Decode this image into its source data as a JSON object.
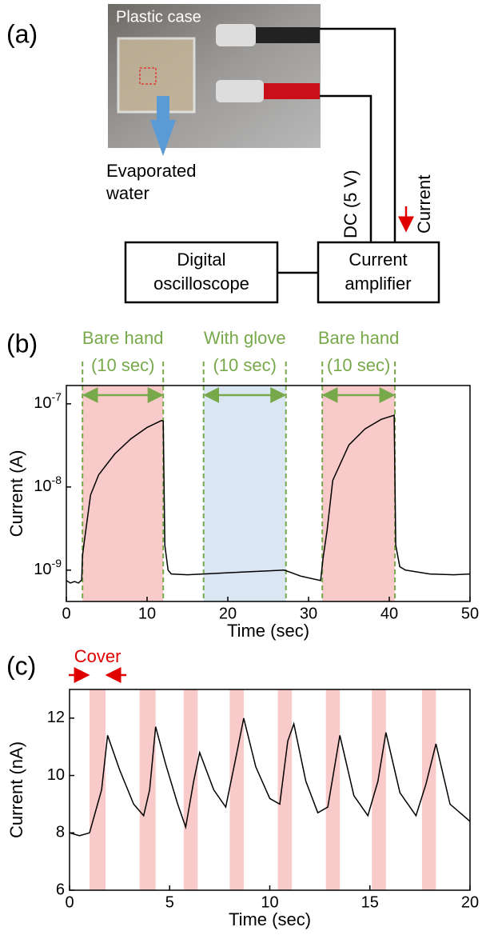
{
  "panel_a": {
    "panel": "(a)",
    "photo_label": "Plastic case",
    "water_label_1": "Evaporated",
    "water_label_2": "water",
    "dc_label": "DC (5 V)",
    "current_label": "Current",
    "osc_1": "Digital",
    "osc_2": "oscilloscope",
    "amp_1": "Current",
    "amp_2": "amplifier"
  },
  "chart_data": [
    {
      "type": "line",
      "panel": "(b)",
      "y_label": "Current (A)",
      "x_label": "Time (sec)",
      "log_y": true,
      "color": "#000000",
      "xlim": [
        0,
        50
      ],
      "xticks": [
        0,
        10,
        20,
        30,
        40,
        50
      ],
      "ylim": [
        4.2e-10,
        1.66e-07
      ],
      "yticks": [
        {
          "value": 1e-09,
          "label": "10-9"
        },
        {
          "value": 1e-08,
          "label": "10-8"
        },
        {
          "value": 1e-07,
          "label": "10-7"
        }
      ],
      "region_edges": true,
      "edge_color": "#77a94b",
      "regions": [
        {
          "label": "Bare hand",
          "sublabel": "(10 sec)",
          "start": 2,
          "end": 12,
          "color": "#f8caca"
        },
        {
          "label": "With glove",
          "sublabel": "(10 sec)",
          "start": 17,
          "end": 27.2,
          "color": "#dbe6f3"
        },
        {
          "label": "Bare hand",
          "sublabel": "(10 sec)",
          "start": 31.7,
          "end": 40.7,
          "color": "#f8caca"
        }
      ],
      "x": [
        0,
        0.5,
        1,
        1.5,
        1.9,
        2.0,
        2.3,
        3,
        4,
        6,
        8,
        10,
        11.8,
        12,
        12.2,
        12.6,
        13,
        15,
        17,
        20,
        22,
        25,
        27,
        29,
        31.5,
        31.8,
        32.3,
        33,
        35,
        37,
        39,
        40.6,
        40.8,
        41.3,
        42,
        45,
        48,
        50
      ],
      "y": [
        7.5e-10,
        7e-10,
        7.3e-10,
        7e-10,
        7.6e-10,
        1.5e-09,
        2.5e-09,
        8e-09,
        1.4e-08,
        2.5e-08,
        3.8e-08,
        5.2e-08,
        6.3e-08,
        6.2e-08,
        2e-09,
        1e-09,
        9e-10,
        8.8e-10,
        9e-10,
        9.3e-10,
        9.5e-10,
        9.8e-10,
        1e-09,
        8.5e-10,
        7.5e-10,
        1.4e-09,
        3e-09,
        1.2e-08,
        3.2e-08,
        5e-08,
        6.5e-08,
        7.3e-08,
        2e-09,
        1.1e-09,
        1e-09,
        9e-10,
        8.8e-10,
        9e-10
      ]
    },
    {
      "type": "line",
      "panel": "(c)",
      "y_label": "Current (nA)",
      "x_label": "Time (sec)",
      "log_y": false,
      "color": "#000000",
      "xlim": [
        0,
        20
      ],
      "xticks": [
        0,
        5,
        10,
        15,
        20
      ],
      "ylim": [
        6,
        13
      ],
      "yticks": [
        6,
        8,
        10,
        12
      ],
      "region_edges": false,
      "cover_label": "Cover",
      "cover_color": "#e00000",
      "regions": [
        {
          "start": 1.0,
          "end": 1.8,
          "color": "#f8caca"
        },
        {
          "start": 3.5,
          "end": 4.3,
          "color": "#f8caca"
        },
        {
          "start": 5.7,
          "end": 6.4,
          "color": "#f8caca"
        },
        {
          "start": 8.0,
          "end": 8.7,
          "color": "#f8caca"
        },
        {
          "start": 10.4,
          "end": 11.1,
          "color": "#f8caca"
        },
        {
          "start": 12.8,
          "end": 13.5,
          "color": "#f8caca"
        },
        {
          "start": 15.1,
          "end": 15.8,
          "color": "#f8caca"
        },
        {
          "start": 17.6,
          "end": 18.3,
          "color": "#f8caca"
        }
      ],
      "x": [
        0,
        0.5,
        1.0,
        1.6,
        1.9,
        2.5,
        3.2,
        3.7,
        4.0,
        4.3,
        4.8,
        5.4,
        5.8,
        6.2,
        6.5,
        7.2,
        7.8,
        8.3,
        8.7,
        9.3,
        10.0,
        10.5,
        10.9,
        11.2,
        11.8,
        12.4,
        12.9,
        13.5,
        14.2,
        14.9,
        15.4,
        15.8,
        16.5,
        17.3,
        17.8,
        18.3,
        19.0,
        20.0
      ],
      "y": [
        8.0,
        7.9,
        8.0,
        9.5,
        11.4,
        10.2,
        9.0,
        8.6,
        9.5,
        11.7,
        10.4,
        9.0,
        8.2,
        9.8,
        10.8,
        9.5,
        8.9,
        10.6,
        12.0,
        10.3,
        9.2,
        9.0,
        11.2,
        11.8,
        9.8,
        8.7,
        8.9,
        11.4,
        9.3,
        8.6,
        9.8,
        11.5,
        9.4,
        8.6,
        9.7,
        11.1,
        9.0,
        8.4
      ]
    }
  ]
}
